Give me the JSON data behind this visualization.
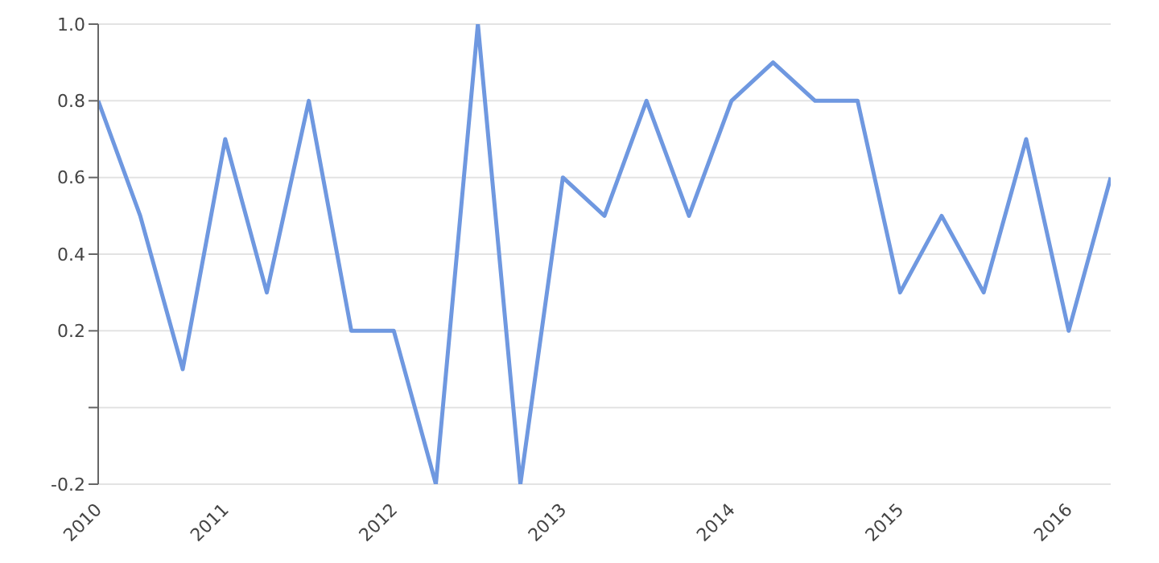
{
  "chart_data": {
    "type": "line",
    "x": [
      "2010-04",
      "2010-07",
      "2010-10",
      "2011-01",
      "2011-04",
      "2011-07",
      "2011-10",
      "2012-01",
      "2012-04",
      "2012-07",
      "2012-10",
      "2013-01",
      "2013-04",
      "2013-07",
      "2013-10",
      "2014-01",
      "2014-04",
      "2014-07",
      "2014-10",
      "2015-01",
      "2015-04",
      "2015-07",
      "2015-10",
      "2016-01",
      "2016-04"
    ],
    "series": [
      {
        "color": "#6f98e0",
        "values": [
          0.8,
          0.5,
          0.1,
          0.7,
          0.3,
          0.8,
          0.2,
          0.2,
          -0.2,
          1.0,
          -0.2,
          0.6,
          0.5,
          0.8,
          0.5,
          0.8,
          0.9,
          0.8,
          0.8,
          0.3,
          0.5,
          0.3,
          0.7,
          0.2,
          0.6
        ]
      }
    ],
    "xlim": [
      "2010-04",
      "2016-04"
    ],
    "xticks": [
      {
        "value": "2010-04",
        "label": "2010"
      },
      "2011",
      "2012",
      "2013",
      "2014",
      "2015",
      "2016"
    ],
    "ylim": [
      -0.2,
      1.0
    ],
    "yticks": [
      -0.2,
      {
        "value": 0,
        "label": null
      },
      0.2,
      0.4,
      0.6,
      0.8,
      {
        "value": 1.0,
        "label": "1.0"
      }
    ],
    "grid": "y",
    "marker": "none",
    "line_style": "solid",
    "legend": false
  }
}
